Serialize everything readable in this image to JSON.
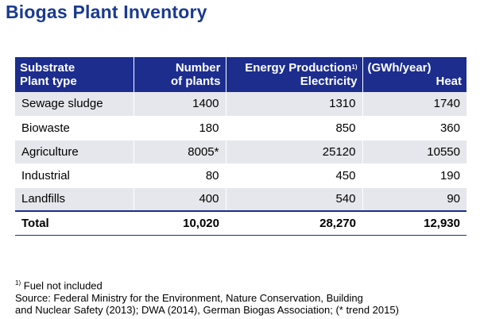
{
  "title": "Biogas Plant Inventory",
  "table": {
    "header": {
      "col1_line1": "Substrate",
      "col1_line2": "Plant type",
      "col2_line1": "Number",
      "col2_line2": "of plants",
      "col3_line1": "Energy Production",
      "col3_sup": "1)",
      "col3_line2": "Electricity",
      "col4_line1": "(GWh/year)",
      "col4_line2": "Heat"
    },
    "rows": [
      {
        "name": "Sewage sludge",
        "plants": "1400",
        "electricity": "1310",
        "heat": "1740"
      },
      {
        "name": "Biowaste",
        "plants": "180",
        "electricity": "850",
        "heat": "360"
      },
      {
        "name": "Agriculture",
        "plants": "8005*",
        "electricity": "25120",
        "heat": "10550"
      },
      {
        "name": "Industrial",
        "plants": "80",
        "electricity": "450",
        "heat": "190"
      },
      {
        "name": "Landfills",
        "plants": "400",
        "electricity": "540",
        "heat": "90"
      }
    ],
    "total": {
      "name": "Total",
      "plants": "10,020",
      "electricity": "28,270",
      "heat": "12,930"
    }
  },
  "footnote": {
    "sup": "1)",
    "line1": "Fuel not included",
    "line2": "Source: Federal Ministry for the Environment, Nature Conservation, Building",
    "line3": "and Nuclear Safety (2013); DWA (2014), German Biogas Association; (* trend 2015)"
  }
}
